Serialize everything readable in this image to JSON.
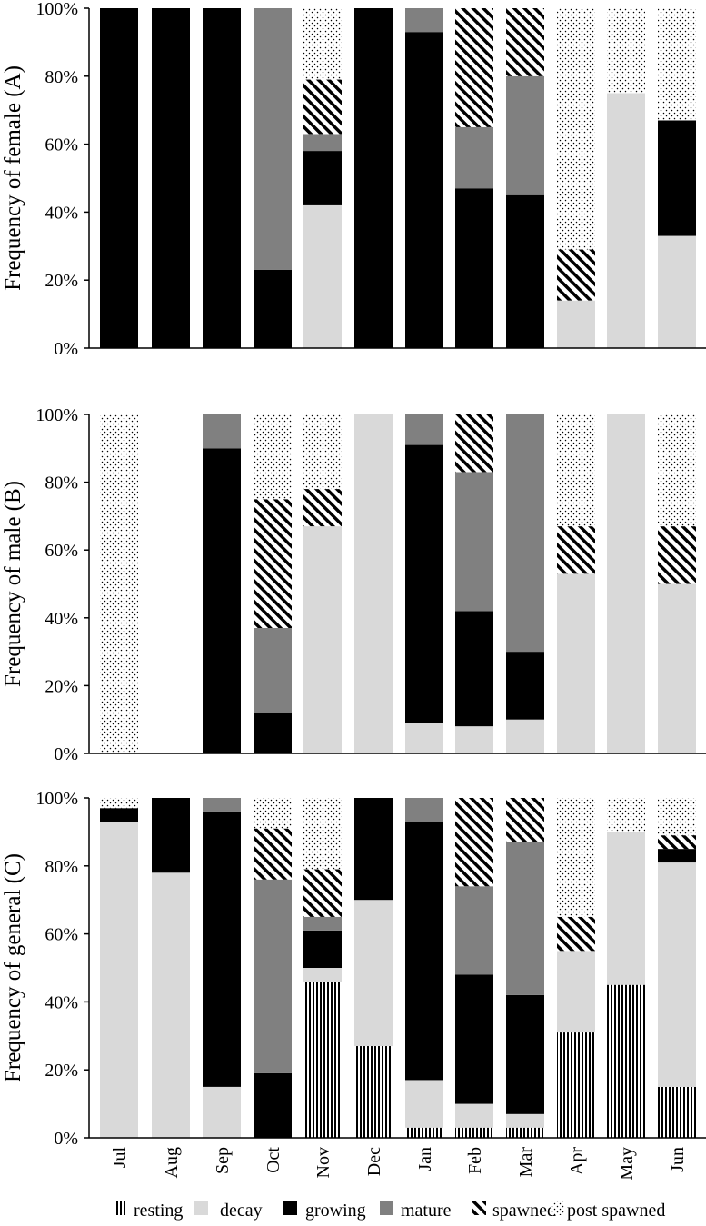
{
  "categories": [
    "Jul",
    "Aug",
    "Sep",
    "Oct",
    "Nov",
    "Dec",
    "Jan",
    "Feb",
    "Mar",
    "Apr",
    "May",
    "Jun"
  ],
  "y_ticks": [
    "0%",
    "20%",
    "40%",
    "60%",
    "80%",
    "100%"
  ],
  "legend": [
    {
      "key": "resting",
      "label": "resting",
      "fill": "stripes"
    },
    {
      "key": "decay",
      "label": "decay",
      "fill": "#d9d9d9"
    },
    {
      "key": "growing",
      "label": "growing",
      "fill": "#000000"
    },
    {
      "key": "mature",
      "label": "mature",
      "fill": "#808080"
    },
    {
      "key": "spawned",
      "label": "spawned",
      "fill": "diagonal"
    },
    {
      "key": "post_spawned",
      "label": "post spawned",
      "fill": "dots"
    }
  ],
  "chart_data": [
    {
      "type": "bar",
      "stacked": true,
      "ylabel": "Frequency of female (A)",
      "ylim": [
        0,
        100
      ],
      "categories": [
        "Jul",
        "Aug",
        "Sep",
        "Oct",
        "Nov",
        "Dec",
        "Jan",
        "Feb",
        "Mar",
        "Apr",
        "May",
        "Jun"
      ],
      "series": [
        {
          "name": "resting",
          "values": [
            0,
            0,
            0,
            0,
            0,
            0,
            0,
            0,
            0,
            0,
            0,
            0
          ]
        },
        {
          "name": "decay",
          "values": [
            0,
            0,
            0,
            0,
            42,
            0,
            0,
            0,
            0,
            14,
            75,
            33
          ]
        },
        {
          "name": "growing",
          "values": [
            100,
            100,
            100,
            23,
            16,
            100,
            93,
            47,
            45,
            0,
            0,
            34
          ]
        },
        {
          "name": "mature",
          "values": [
            0,
            0,
            0,
            77,
            5,
            0,
            7,
            18,
            35,
            0,
            0,
            0
          ]
        },
        {
          "name": "spawned",
          "values": [
            0,
            0,
            0,
            0,
            16,
            0,
            0,
            35,
            20,
            15,
            0,
            0
          ]
        },
        {
          "name": "post spawned",
          "values": [
            0,
            0,
            0,
            0,
            21,
            0,
            0,
            0,
            0,
            71,
            25,
            33
          ]
        }
      ]
    },
    {
      "type": "bar",
      "stacked": true,
      "ylabel": "Frequency of male (B)",
      "ylim": [
        0,
        100
      ],
      "categories": [
        "Jul",
        "Aug",
        "Sep",
        "Oct",
        "Nov",
        "Dec",
        "Jan",
        "Feb",
        "Mar",
        "Apr",
        "May",
        "Jun"
      ],
      "series": [
        {
          "name": "resting",
          "values": [
            0,
            0,
            0,
            0,
            0,
            0,
            0,
            0,
            0,
            0,
            0,
            0
          ]
        },
        {
          "name": "decay",
          "values": [
            0,
            0,
            0,
            0,
            67,
            100,
            9,
            8,
            10,
            53,
            100,
            50
          ]
        },
        {
          "name": "growing",
          "values": [
            0,
            0,
            90,
            12,
            0,
            0,
            82,
            34,
            20,
            0,
            0,
            0
          ]
        },
        {
          "name": "mature",
          "values": [
            0,
            0,
            10,
            25,
            0,
            0,
            9,
            41,
            70,
            0,
            0,
            0
          ]
        },
        {
          "name": "spawned",
          "values": [
            0,
            0,
            0,
            38,
            11,
            0,
            0,
            17,
            0,
            14,
            0,
            17
          ]
        },
        {
          "name": "post spawned",
          "values": [
            100,
            0,
            0,
            25,
            22,
            0,
            0,
            0,
            0,
            33,
            0,
            33
          ]
        }
      ]
    },
    {
      "type": "bar",
      "stacked": true,
      "ylabel": "Frequency of general (C)",
      "ylim": [
        0,
        100
      ],
      "categories": [
        "Jul",
        "Aug",
        "Sep",
        "Oct",
        "Nov",
        "Dec",
        "Jan",
        "Feb",
        "Mar",
        "Apr",
        "May",
        "Jun"
      ],
      "series": [
        {
          "name": "resting",
          "values": [
            0,
            0,
            0,
            0,
            46,
            27,
            3,
            3,
            3,
            31,
            45,
            15
          ]
        },
        {
          "name": "decay",
          "values": [
            93,
            78,
            15,
            0,
            4,
            43,
            14,
            7,
            4,
            24,
            45,
            66
          ]
        },
        {
          "name": "growing",
          "values": [
            4,
            22,
            81,
            19,
            11,
            30,
            76,
            38,
            35,
            0,
            0,
            4
          ]
        },
        {
          "name": "mature",
          "values": [
            0,
            0,
            4,
            57,
            4,
            0,
            7,
            26,
            45,
            0,
            0,
            0
          ]
        },
        {
          "name": "spawned",
          "values": [
            0,
            0,
            0,
            15,
            14,
            0,
            0,
            26,
            13,
            10,
            0,
            4
          ]
        },
        {
          "name": "post spawned",
          "values": [
            3,
            0,
            0,
            9,
            21,
            0,
            0,
            0,
            0,
            35,
            10,
            11
          ]
        }
      ]
    }
  ]
}
